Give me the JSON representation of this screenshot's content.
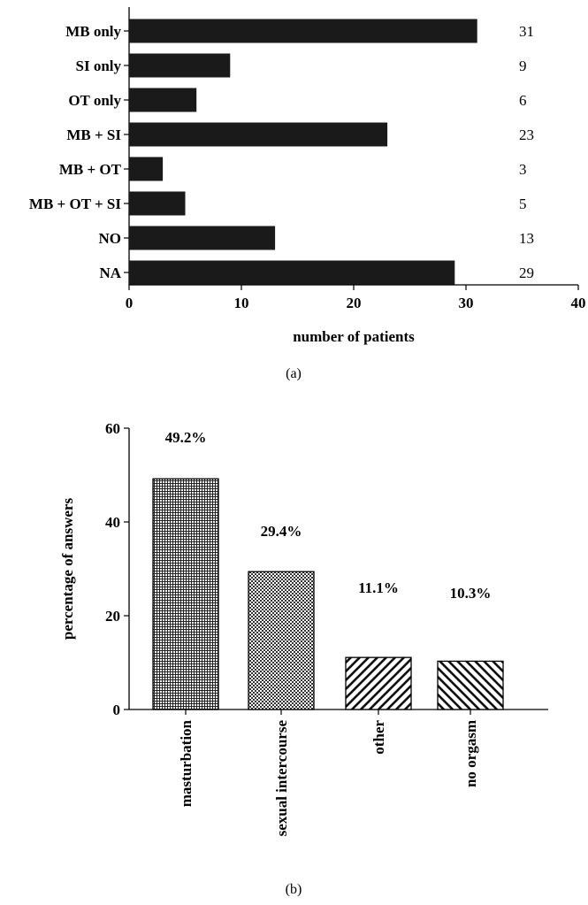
{
  "chart_data": [
    {
      "type": "bar",
      "orientation": "horizontal",
      "categories": [
        "MB only",
        "SI only",
        "OT only",
        "MB + SI",
        "MB + OT",
        "MB + OT + SI",
        "NO",
        "NA"
      ],
      "values": [
        31,
        9,
        6,
        23,
        3,
        5,
        13,
        29
      ],
      "value_labels": [
        "31",
        "9",
        "6",
        "23",
        "3",
        "5",
        "13",
        "29"
      ],
      "xlabel": "number of patients",
      "xlim": [
        0,
        40
      ],
      "xticks": [
        0,
        10,
        20,
        30,
        40
      ],
      "xtick_labels": [
        "0",
        "10",
        "20",
        "30",
        "40"
      ],
      "caption": "(a)",
      "bar_color": "#1a1a1a",
      "grid": false
    },
    {
      "type": "bar",
      "orientation": "vertical",
      "categories": [
        "masturbation",
        "sexual intercourse",
        "other",
        "no orgasm"
      ],
      "values": [
        49.2,
        29.4,
        11.1,
        10.3
      ],
      "value_labels": [
        "49.2%",
        "29.4%",
        "11.1%",
        "10.3%"
      ],
      "patterns": [
        "dense-grid",
        "checker",
        "diag-right",
        "diag-left"
      ],
      "ylabel": "percentage of answers",
      "ylim": [
        0,
        60
      ],
      "yticks": [
        0,
        20,
        40,
        60
      ],
      "ytick_labels": [
        "0",
        "20",
        "40",
        "60"
      ],
      "caption": "(b)",
      "grid": false
    }
  ]
}
